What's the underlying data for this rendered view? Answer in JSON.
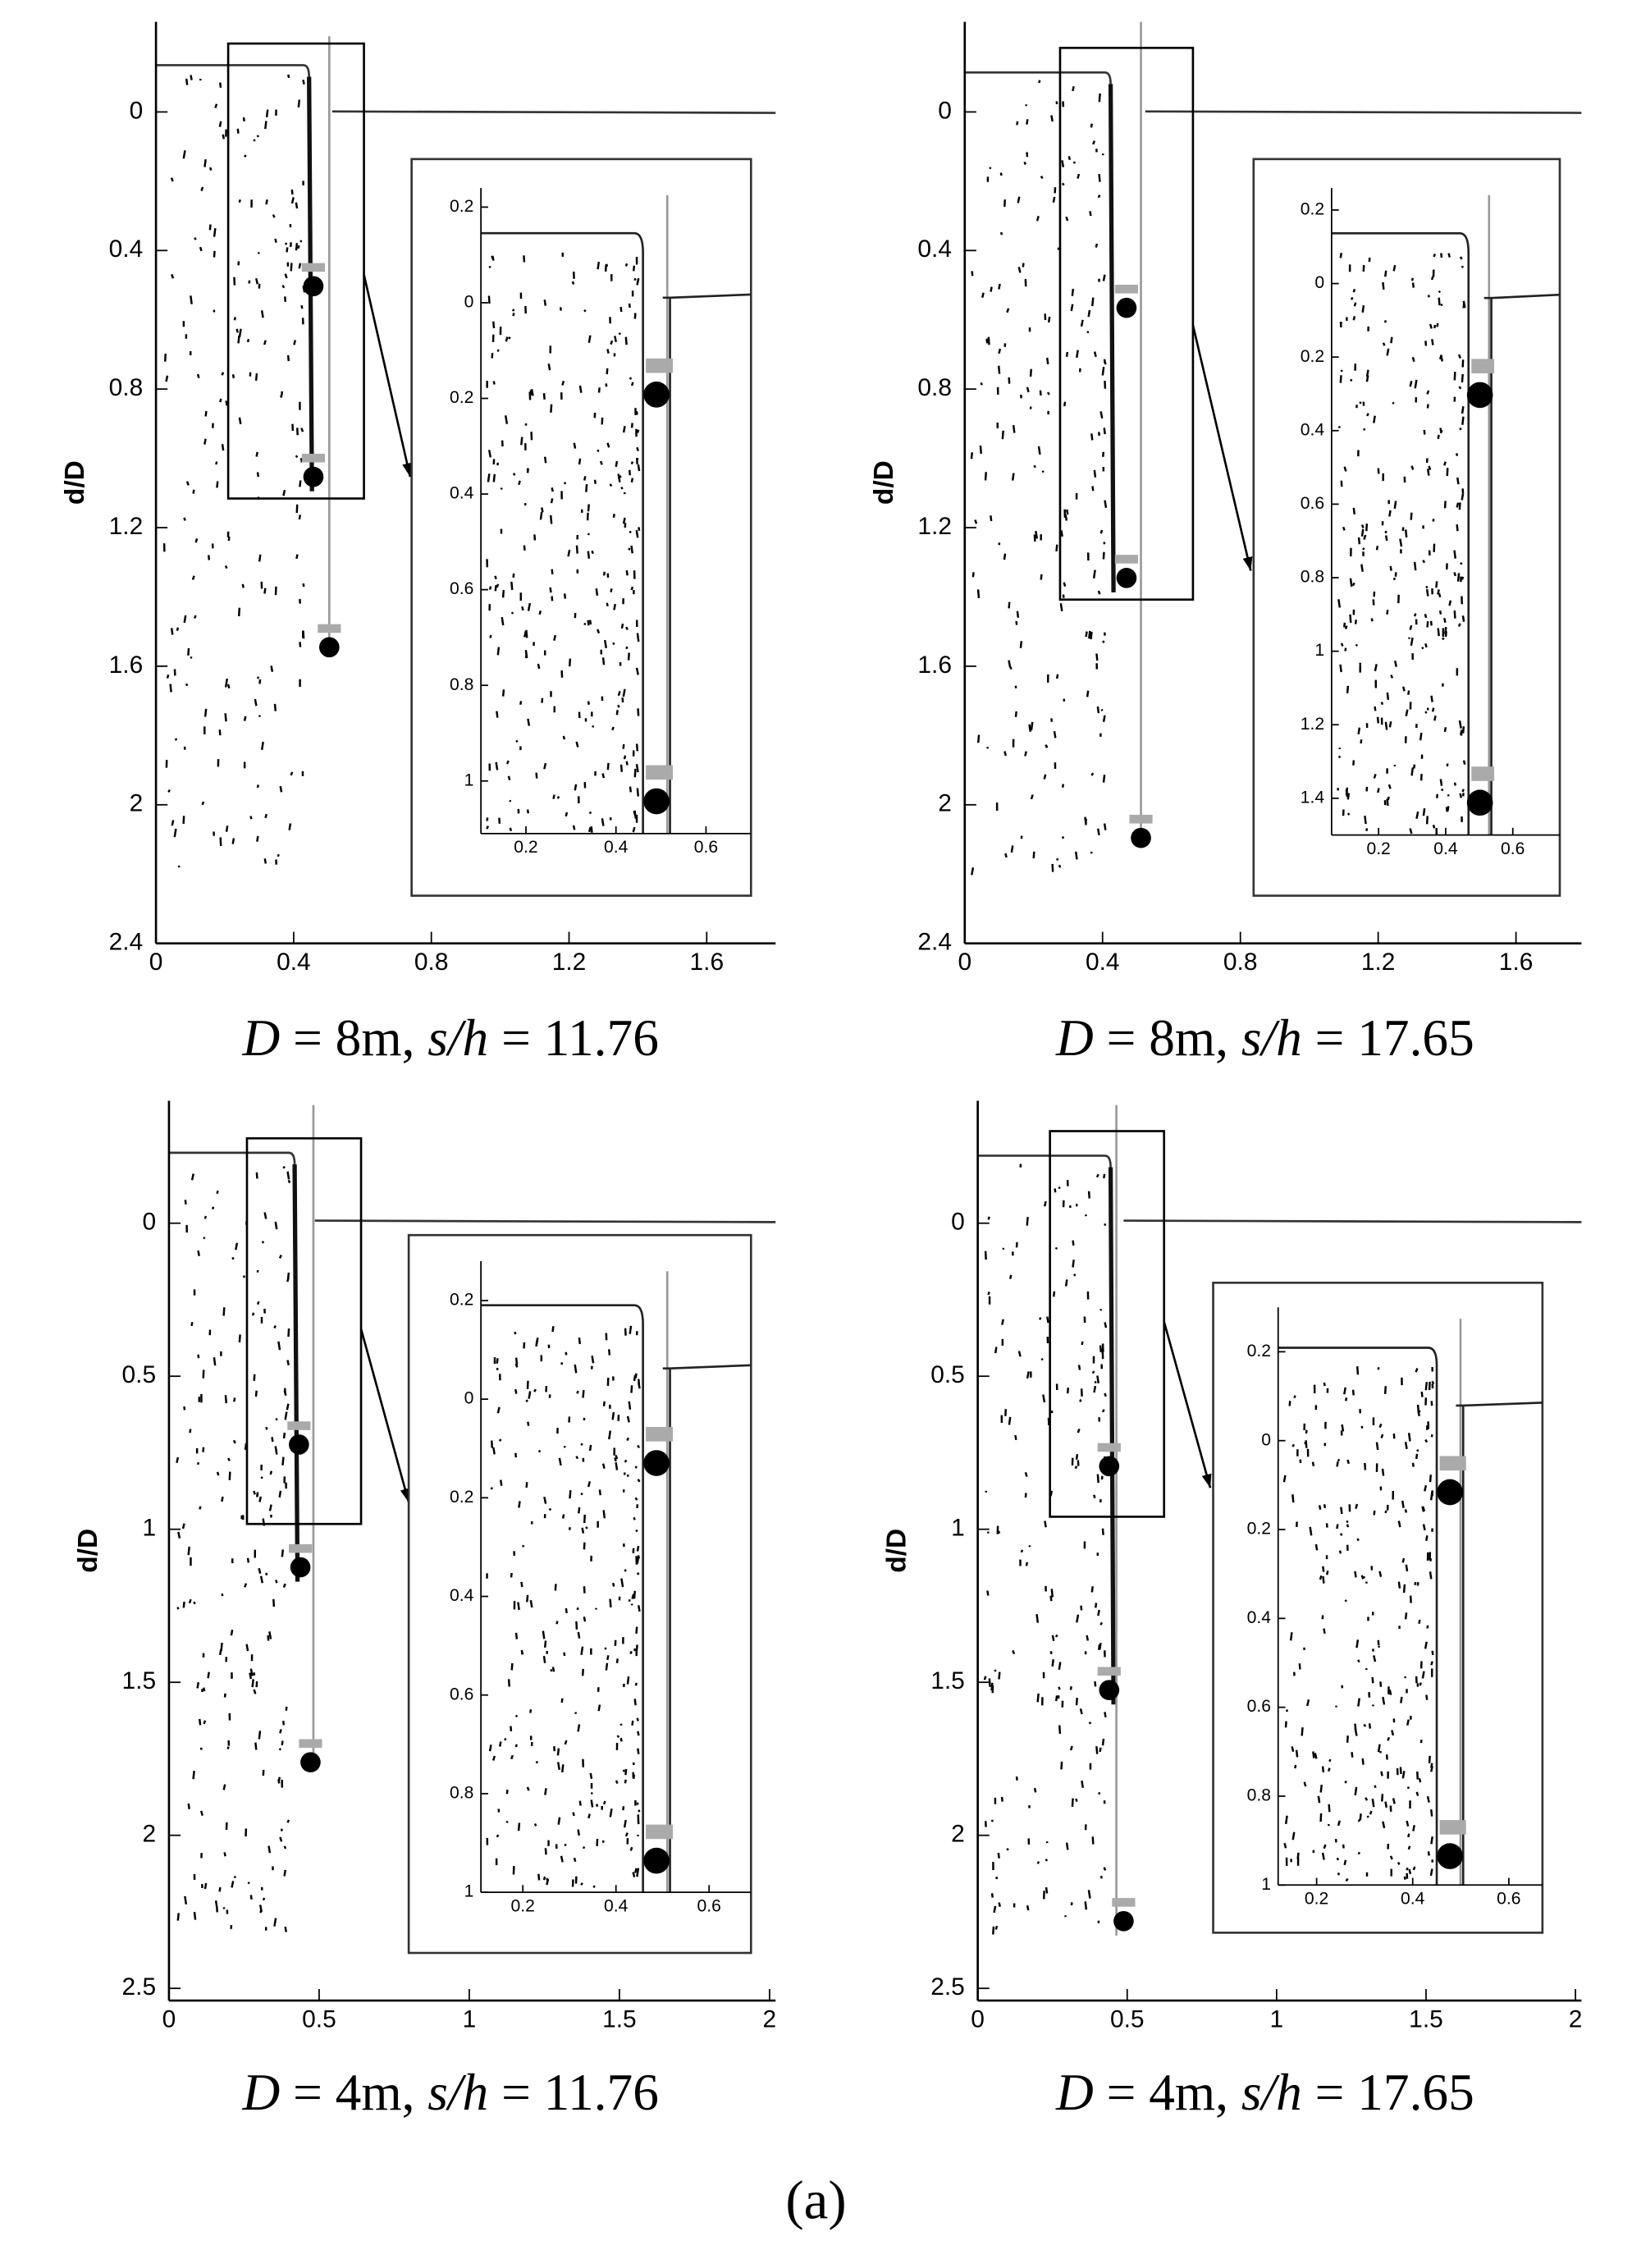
{
  "figure_label": "(a)",
  "panels": [
    {
      "caption": [
        "D",
        "= 8m,",
        "s/h",
        "= 11.76"
      ],
      "ylabel": "d/D",
      "xlim": [
        0,
        1.8
      ],
      "xticks": [
        0,
        0.4,
        0.8,
        1.2,
        1.6
      ],
      "ylim": [
        -0.26,
        2.4
      ],
      "yticks": [
        0,
        0.4,
        0.8,
        1.2,
        1.6,
        2,
        2.4
      ],
      "y_reversed": true,
      "inset": {
        "xlim": [
          0.1,
          0.7
        ],
        "xticks": [
          0.2,
          0.4,
          0.6
        ],
        "ylim": [
          -0.24,
          1.11
        ],
        "yticks": [
          {
            "value": -0.2,
            "label": "0.2"
          },
          0,
          0.2,
          0.4,
          0.6,
          0.8,
          1
        ],
        "y_reversed": true
      }
    },
    {
      "caption": [
        "D",
        "= 8m,",
        "s/h",
        "= 17.65"
      ],
      "ylabel": "d/D",
      "xlim": [
        0,
        1.79
      ],
      "xticks": [
        0,
        0.4,
        0.8,
        1.2,
        1.6
      ],
      "ylim": [
        -0.26,
        2.4
      ],
      "yticks": [
        0,
        0.4,
        0.8,
        1.2,
        1.6,
        2,
        2.4
      ],
      "y_reversed": true,
      "inset": {
        "xlim": [
          0.06,
          0.74
        ],
        "xticks": [
          0.2,
          0.4,
          0.6
        ],
        "ylim": [
          -0.26,
          1.5
        ],
        "yticks": [
          {
            "value": -0.2,
            "label": "0.2"
          },
          0,
          0.2,
          0.4,
          0.6,
          0.8,
          1,
          1.2,
          1.4
        ],
        "y_reversed": true
      }
    },
    {
      "caption": [
        "D",
        "= 4m,",
        "s/h",
        "= 11.76"
      ],
      "ylabel": "d/D",
      "xlim": [
        0,
        2.02
      ],
      "xticks": [
        0,
        0.5,
        1,
        1.5,
        2
      ],
      "ylim": [
        -0.4,
        2.54
      ],
      "yticks": [
        0,
        0.5,
        1,
        1.5,
        2,
        2.5
      ],
      "y_reversed": true,
      "inset": {
        "xlim": [
          0.11,
          0.69
        ],
        "xticks": [
          0.2,
          0.4,
          0.6
        ],
        "ylim": [
          -0.28,
          1
        ],
        "yticks": [
          {
            "value": -0.2,
            "label": "0.2"
          },
          0,
          0.2,
          0.4,
          0.6,
          0.8,
          1
        ],
        "y_reversed": true
      }
    },
    {
      "caption": [
        "D",
        "= 4m,",
        "s/h",
        "= 17.65"
      ],
      "ylabel": "d/D",
      "xlim": [
        0,
        2.02
      ],
      "xticks": [
        0,
        0.5,
        1,
        1.5,
        2
      ],
      "ylim": [
        -0.4,
        2.54
      ],
      "yticks": [
        0,
        0.5,
        1,
        1.5,
        2,
        2.5
      ],
      "y_reversed": true,
      "inset": {
        "xlim": [
          0.12,
          0.67
        ],
        "xticks": [
          0.2,
          0.4,
          0.6
        ],
        "ylim": [
          -0.3,
          1
        ],
        "yticks": [
          {
            "value": -0.2,
            "label": "0.2"
          },
          0,
          0.2,
          0.4,
          0.6,
          0.8,
          1
        ],
        "y_reversed": true
      }
    }
  ]
}
